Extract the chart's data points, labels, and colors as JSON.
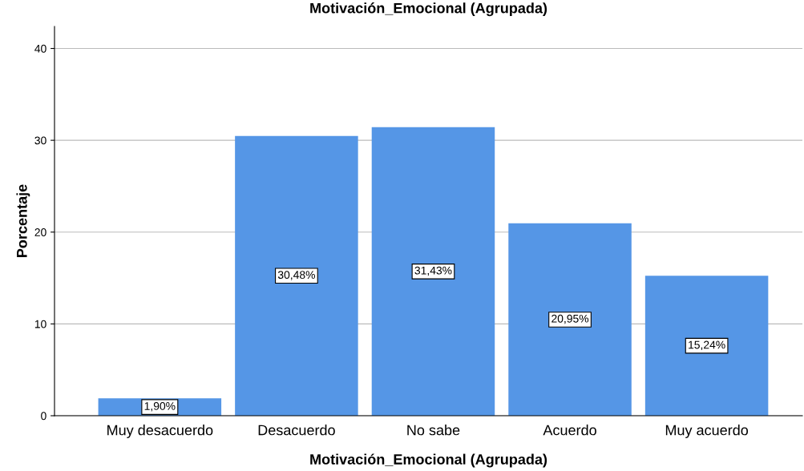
{
  "chart_data": {
    "type": "bar",
    "title": "Motivación_Emocional (Agrupada)",
    "xlabel": "Motivación_Emocional (Agrupada)",
    "ylabel": "Porcentaje",
    "categories": [
      "Muy desacuerdo",
      "Desacuerdo",
      "No sabe",
      "Acuerdo",
      "Muy acuerdo"
    ],
    "values": [
      1.9,
      30.48,
      31.43,
      20.95,
      15.24
    ],
    "value_labels": [
      "1,90%",
      "30,48%",
      "31,43%",
      "20,95%",
      "15,24%"
    ],
    "color": "#5596e6",
    "ylim": [
      0,
      42.4
    ],
    "yticks": [
      0,
      10,
      20,
      30,
      40
    ],
    "grid": "y"
  }
}
